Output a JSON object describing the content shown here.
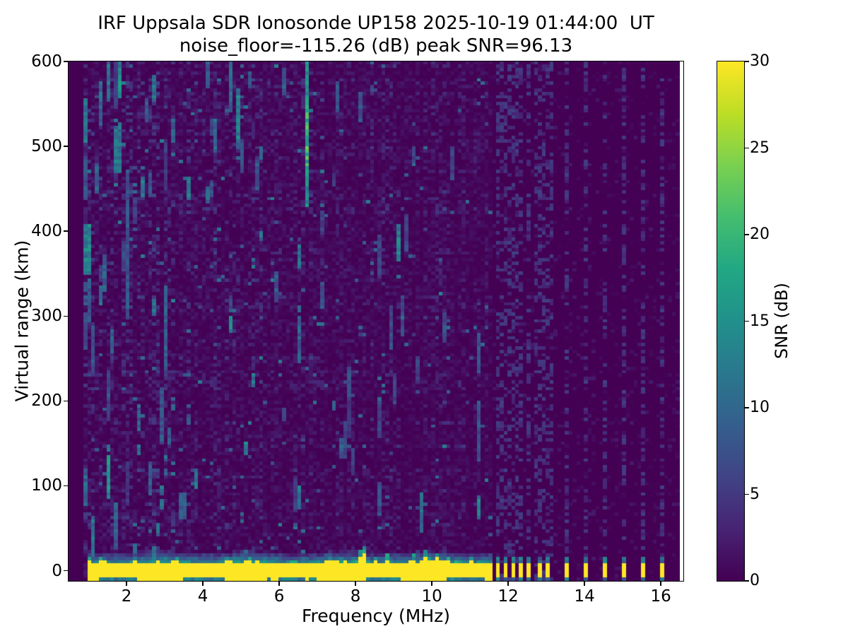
{
  "figure": {
    "background": "#ffffff"
  },
  "chart_data": {
    "type": "heatmap",
    "title": "IRF Uppsala SDR Ionosonde UP158 2025-10-19 01:44:00  UT",
    "subtitle": "noise_floor=-115.26 (dB) peak SNR=96.13",
    "xlabel": "Frequency (MHz)",
    "ylabel": "Virtual range (km)",
    "colorbar_label": "SNR (dB)",
    "xlim": [
      0.48,
      16.59
    ],
    "ylim": [
      -12,
      600
    ],
    "clim": [
      0,
      30
    ],
    "x_ticks": [
      2,
      4,
      6,
      8,
      10,
      12,
      14,
      16
    ],
    "y_ticks": [
      0,
      100,
      200,
      300,
      400,
      500,
      600
    ],
    "colorbar_ticks": [
      0,
      5,
      10,
      15,
      20,
      25,
      30
    ],
    "grid": false,
    "colormap": "viridis",
    "viridis_stops": [
      [
        68,
        1,
        84
      ],
      [
        72,
        36,
        117
      ],
      [
        65,
        68,
        135
      ],
      [
        53,
        95,
        141
      ],
      [
        42,
        120,
        142
      ],
      [
        33,
        145,
        140
      ],
      [
        34,
        168,
        132
      ],
      [
        68,
        190,
        112
      ],
      [
        122,
        209,
        81
      ],
      [
        189,
        222,
        38
      ],
      [
        253,
        231,
        37
      ]
    ],
    "features": {
      "ground_pulse_band": {
        "freq_start_mhz": 0.95,
        "freq_end_mhz": 11.62,
        "center_km": 0,
        "core_half_width_km": 8,
        "fringe_km": 13,
        "snr_db": 30
      },
      "band_plumes": [
        {
          "f": 1.05,
          "amp": 6,
          "w": 0.08
        },
        {
          "f": 1.35,
          "amp": 9,
          "w": 0.12
        },
        {
          "f": 2.2,
          "amp": 7,
          "w": 0.1
        },
        {
          "f": 3.3,
          "amp": 6,
          "w": 0.08
        },
        {
          "f": 4.65,
          "amp": 8,
          "w": 0.1
        },
        {
          "f": 5.2,
          "amp": 6,
          "w": 0.08
        },
        {
          "f": 6.4,
          "amp": 7,
          "w": 0.08
        },
        {
          "f": 7.3,
          "amp": 7,
          "w": 0.1
        },
        {
          "f": 8.2,
          "amp": 24,
          "w": 0.1
        },
        {
          "f": 8.55,
          "amp": 10,
          "w": 0.07
        },
        {
          "f": 8.85,
          "amp": 13,
          "w": 0.08
        },
        {
          "f": 9.5,
          "amp": 11,
          "w": 0.08
        },
        {
          "f": 9.85,
          "amp": 15,
          "w": 0.09
        },
        {
          "f": 10.15,
          "amp": 13,
          "w": 0.08
        },
        {
          "f": 10.4,
          "amp": 11,
          "w": 0.07
        },
        {
          "f": 10.68,
          "amp": 9,
          "w": 0.07
        },
        {
          "f": 11.0,
          "amp": 11,
          "w": 0.09
        },
        {
          "f": 11.3,
          "amp": 8,
          "w": 0.07
        }
      ],
      "discrete_bars_mhz": [
        11.75,
        11.95,
        12.15,
        12.38,
        12.58,
        12.8,
        13.02,
        13.5,
        14.02,
        14.5,
        15.02,
        15.5,
        16.02
      ],
      "bar_half_width_mhz": 0.055,
      "dashed_columns_mhz": [
        11.7,
        11.75,
        11.85,
        11.95,
        12.05,
        12.15,
        12.25,
        12.38,
        12.5,
        12.58,
        12.7,
        12.8,
        12.9,
        13.02,
        13.1,
        13.5,
        14.02,
        14.5,
        15.02,
        15.5,
        16.02
      ],
      "echo_trace": {
        "f_mhz": [
          2.72,
          3.3
        ],
        "km": [
          12,
          215
        ],
        "snr_db": 11,
        "note": "slanted dashed ionospheric echo"
      },
      "rfi_streaks": [
        {
          "f": 6.72,
          "km": [
            430,
            600
          ],
          "snr": 15
        },
        {
          "f": 6.72,
          "km": [
            478,
            552
          ],
          "snr": 19
        },
        {
          "f": 1.82,
          "km": [
            558,
            600
          ],
          "snr": 14
        },
        {
          "f": 1.31,
          "km": [
            546,
            575
          ],
          "snr": 11
        },
        {
          "f": 1.7,
          "km": [
            490,
            522
          ],
          "snr": 11
        },
        {
          "f": 1.23,
          "km": [
            446,
            480
          ],
          "snr": 10
        },
        {
          "f": 2.49,
          "km": [
            530,
            555
          ],
          "snr": 10
        },
        {
          "f": 3.66,
          "km": [
            438,
            465
          ],
          "snr": 12
        },
        {
          "f": 4.95,
          "km": [
            495,
            562
          ],
          "snr": 9
        },
        {
          "f": 1.55,
          "km": [
            86,
            136
          ],
          "snr": 15
        },
        {
          "f": 2.06,
          "km": [
            298,
            470
          ],
          "snr": 8
        },
        {
          "f": 3.05,
          "km": [
            236,
            332
          ],
          "snr": 9
        },
        {
          "f": 4.72,
          "km": [
            542,
            600
          ],
          "snr": 10
        },
        {
          "f": 4.12,
          "km": [
            568,
            600
          ],
          "snr": 9
        },
        {
          "f": 2.76,
          "km": [
            552,
            582
          ],
          "snr": 11
        },
        {
          "f": 6.12,
          "km": [
            562,
            592
          ],
          "snr": 9
        },
        {
          "f": 5.42,
          "km": [
            448,
            482
          ],
          "snr": 8
        },
        {
          "f": 2.31,
          "km": [
            165,
            196
          ],
          "snr": 9
        },
        {
          "f": 7.56,
          "km": [
            542,
            575
          ],
          "snr": 8
        },
        {
          "f": 8.12,
          "km": [
            528,
            562
          ],
          "snr": 8
        },
        {
          "f": 9.32,
          "km": [
            378,
            420
          ],
          "snr": 7
        },
        {
          "f": 10.32,
          "km": [
            268,
            302
          ],
          "snr": 7
        },
        {
          "f": 11.22,
          "km": [
            128,
            172
          ],
          "snr": 7
        },
        {
          "f": 5.92,
          "km": [
            318,
            352
          ],
          "snr": 8
        },
        {
          "f": 9.02,
          "km": [
            198,
            232
          ],
          "snr": 6
        },
        {
          "f": 1.15,
          "km": [
            15,
            62
          ],
          "snr": 11
        },
        {
          "f": 3.48,
          "km": [
            60,
            92
          ],
          "snr": 9
        },
        {
          "f": 2.9,
          "km": [
            150,
            215
          ],
          "snr": 8
        },
        {
          "f": 1.42,
          "km": [
            330,
            370
          ],
          "snr": 9
        },
        {
          "f": 1.62,
          "km": [
            255,
            285
          ],
          "snr": 9
        },
        {
          "f": 3.2,
          "km": [
            505,
            530
          ],
          "snr": 9
        },
        {
          "f": 2.62,
          "km": [
            440,
            468
          ],
          "snr": 8
        },
        {
          "f": 10.55,
          "km": [
            470,
            500
          ],
          "snr": 6
        },
        {
          "f": 8.6,
          "km": [
            345,
            395
          ],
          "snr": 6
        }
      ],
      "noise": {
        "seed": 20251019,
        "data_start_mhz": 0.9,
        "clean_above_mhz": 11.62,
        "base_max_db": 3.4,
        "speckle_db": [
          4,
          11
        ],
        "procedural_streaks": 72
      }
    }
  }
}
